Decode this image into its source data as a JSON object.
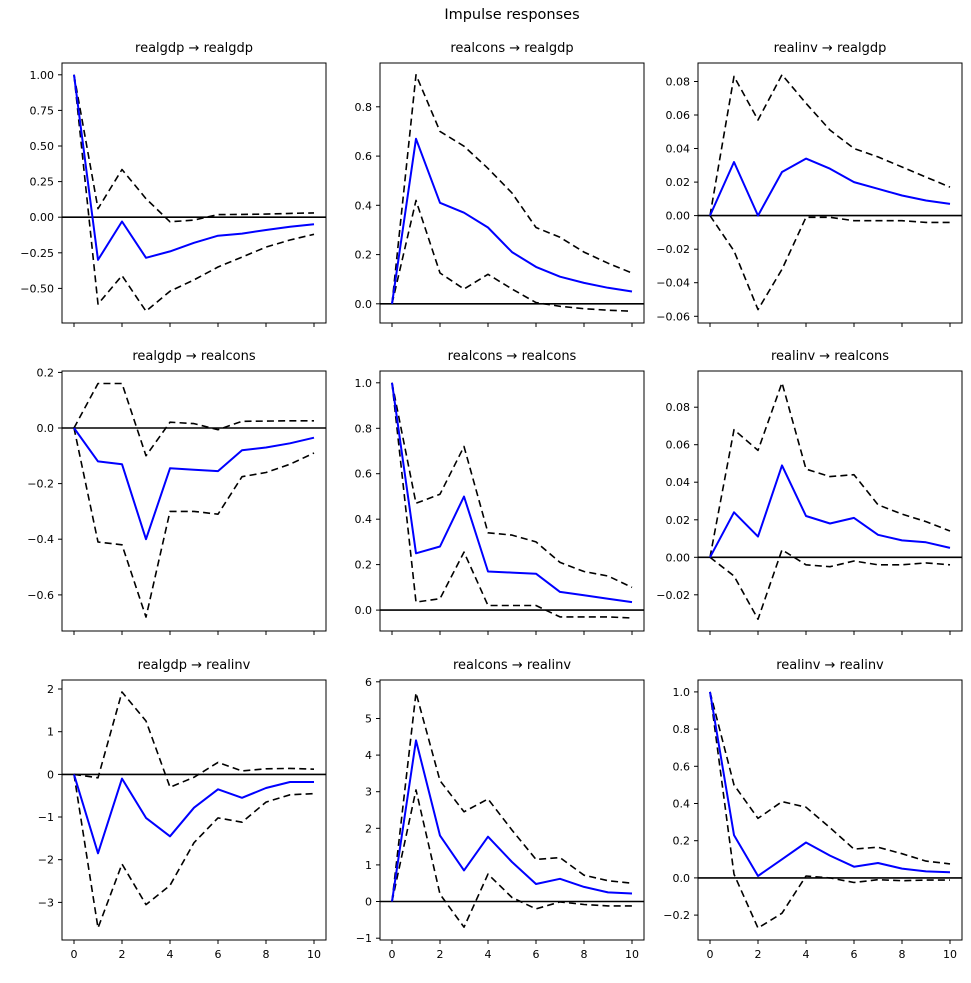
{
  "figure": {
    "title": "Impulse responses",
    "background": "#ffffff"
  },
  "styles": {
    "irf_color": "#0000ff",
    "ci_color": "#000000",
    "zero_line_color": "#000000",
    "axis_color": "#000000"
  },
  "chart_data": [
    {
      "type": "line",
      "title": "realgdp → realgdp",
      "impulse": "realgdp",
      "response": "realgdp",
      "grid": false,
      "legend": "none",
      "x": [
        0,
        1,
        2,
        3,
        4,
        5,
        6,
        7,
        8,
        9,
        10
      ],
      "xlim": [
        -0.5,
        10.5
      ],
      "ylim": [
        -0.743,
        1.083
      ],
      "xticks": [
        0,
        2,
        4,
        6,
        8,
        10
      ],
      "xtick_labels": [
        "0",
        "2",
        "4",
        "6",
        "8",
        "10"
      ],
      "show_xtick_labels": false,
      "ytick_values": [
        1.0,
        0.75,
        0.5,
        0.25,
        0.0,
        -0.25,
        -0.5
      ],
      "ytick_labels": [
        "1.00",
        "0.75",
        "0.50",
        "0.25",
        "0.00",
        "−0.25",
        "−0.50"
      ],
      "series": [
        {
          "name": "irf",
          "values": [
            1.0,
            -0.3,
            -0.03,
            -0.285,
            -0.24,
            -0.18,
            -0.13,
            -0.115,
            -0.09,
            -0.067,
            -0.05
          ]
        },
        {
          "name": "upper_ci",
          "values": [
            1.0,
            0.06,
            0.335,
            0.13,
            -0.032,
            -0.02,
            0.018,
            0.02,
            0.022,
            0.027,
            0.03
          ]
        },
        {
          "name": "lower_ci",
          "values": [
            1.0,
            -0.61,
            -0.41,
            -0.66,
            -0.52,
            -0.44,
            -0.35,
            -0.28,
            -0.21,
            -0.16,
            -0.12
          ]
        }
      ]
    },
    {
      "type": "line",
      "title": "realcons → realgdp",
      "impulse": "realcons",
      "response": "realgdp",
      "grid": false,
      "legend": "none",
      "x": [
        0,
        1,
        2,
        3,
        4,
        5,
        6,
        7,
        8,
        9,
        10
      ],
      "xlim": [
        -0.5,
        10.5
      ],
      "ylim": [
        -0.078,
        0.978
      ],
      "xticks": [
        0,
        2,
        4,
        6,
        8,
        10
      ],
      "xtick_labels": [
        "0",
        "2",
        "4",
        "6",
        "8",
        "10"
      ],
      "show_xtick_labels": false,
      "ytick_values": [
        0.8,
        0.6,
        0.4,
        0.2,
        0.0
      ],
      "ytick_labels": [
        "0.8",
        "0.6",
        "0.4",
        "0.2",
        "0.0"
      ],
      "series": [
        {
          "name": "irf",
          "values": [
            0,
            0.67,
            0.41,
            0.37,
            0.31,
            0.21,
            0.15,
            0.11,
            0.085,
            0.065,
            0.05
          ]
        },
        {
          "name": "upper_ci",
          "values": [
            0,
            0.93,
            0.7,
            0.64,
            0.55,
            0.45,
            0.31,
            0.27,
            0.21,
            0.165,
            0.125
          ]
        },
        {
          "name": "lower_ci",
          "values": [
            0,
            0.42,
            0.125,
            0.06,
            0.12,
            0.06,
            0.005,
            -0.01,
            -0.02,
            -0.026,
            -0.03
          ]
        }
      ]
    },
    {
      "type": "line",
      "title": "realinv → realgdp",
      "impulse": "realinv",
      "response": "realgdp",
      "grid": false,
      "legend": "none",
      "x": [
        0,
        1,
        2,
        3,
        4,
        5,
        6,
        7,
        8,
        9,
        10
      ],
      "xlim": [
        -0.5,
        10.5
      ],
      "ylim": [
        -0.064,
        0.091
      ],
      "xticks": [
        0,
        2,
        4,
        6,
        8,
        10
      ],
      "xtick_labels": [
        "0",
        "2",
        "4",
        "6",
        "8",
        "10"
      ],
      "show_xtick_labels": false,
      "ytick_values": [
        0.08,
        0.06,
        0.04,
        0.02,
        0.0,
        -0.02,
        -0.04,
        -0.06
      ],
      "ytick_labels": [
        "0.08",
        "0.06",
        "0.04",
        "0.02",
        "0.00",
        "−0.02",
        "−0.04",
        "−0.06"
      ],
      "series": [
        {
          "name": "irf",
          "values": [
            0,
            0.032,
            0.0,
            0.026,
            0.034,
            0.028,
            0.02,
            0.016,
            0.012,
            0.009,
            0.007
          ]
        },
        {
          "name": "upper_ci",
          "values": [
            0,
            0.083,
            0.057,
            0.084,
            0.067,
            0.051,
            0.04,
            0.035,
            0.029,
            0.023,
            0.017
          ]
        },
        {
          "name": "lower_ci",
          "values": [
            0,
            -0.021,
            -0.056,
            -0.032,
            -0.001,
            -0.001,
            -0.003,
            -0.003,
            -0.003,
            -0.004,
            -0.004
          ]
        }
      ]
    },
    {
      "type": "line",
      "title": "realgdp → realcons",
      "impulse": "realgdp",
      "response": "realcons",
      "grid": false,
      "legend": "none",
      "x": [
        0,
        1,
        2,
        3,
        4,
        5,
        6,
        7,
        8,
        9,
        10
      ],
      "xlim": [
        -0.5,
        10.5
      ],
      "ylim": [
        -0.73,
        0.205
      ],
      "xticks": [
        0,
        2,
        4,
        6,
        8,
        10
      ],
      "xtick_labels": [
        "0",
        "2",
        "4",
        "6",
        "8",
        "10"
      ],
      "show_xtick_labels": false,
      "ytick_values": [
        0.2,
        0.0,
        -0.2,
        -0.4,
        -0.6
      ],
      "ytick_labels": [
        "0.2",
        "0.0",
        "−0.2",
        "−0.4",
        "−0.6"
      ],
      "series": [
        {
          "name": "irf",
          "values": [
            0,
            -0.12,
            -0.13,
            -0.4,
            -0.145,
            -0.15,
            -0.155,
            -0.08,
            -0.07,
            -0.055,
            -0.035
          ]
        },
        {
          "name": "upper_ci",
          "values": [
            0,
            0.16,
            0.16,
            -0.1,
            0.021,
            0.016,
            -0.006,
            0.024,
            0.025,
            0.026,
            0.026
          ]
        },
        {
          "name": "lower_ci",
          "values": [
            0,
            -0.41,
            -0.42,
            -0.68,
            -0.3,
            -0.3,
            -0.31,
            -0.175,
            -0.16,
            -0.13,
            -0.09
          ]
        }
      ]
    },
    {
      "type": "line",
      "title": "realcons → realcons",
      "impulse": "realcons",
      "response": "realcons",
      "grid": false,
      "legend": "none",
      "x": [
        0,
        1,
        2,
        3,
        4,
        5,
        6,
        7,
        8,
        9,
        10
      ],
      "xlim": [
        -0.5,
        10.5
      ],
      "ylim": [
        -0.092,
        1.052
      ],
      "xticks": [
        0,
        2,
        4,
        6,
        8,
        10
      ],
      "xtick_labels": [
        "0",
        "2",
        "4",
        "6",
        "8",
        "10"
      ],
      "show_xtick_labels": false,
      "ytick_values": [
        1.0,
        0.8,
        0.6,
        0.4,
        0.2,
        0.0
      ],
      "ytick_labels": [
        "1.0",
        "0.8",
        "0.6",
        "0.4",
        "0.2",
        "0.0"
      ],
      "series": [
        {
          "name": "irf",
          "values": [
            1.0,
            0.25,
            0.28,
            0.5,
            0.17,
            0.165,
            0.16,
            0.08,
            0.065,
            0.05,
            0.035
          ]
        },
        {
          "name": "upper_ci",
          "values": [
            1.0,
            0.47,
            0.51,
            0.72,
            0.34,
            0.33,
            0.3,
            0.21,
            0.17,
            0.15,
            0.1
          ]
        },
        {
          "name": "lower_ci",
          "values": [
            1.0,
            0.035,
            0.05,
            0.255,
            0.02,
            0.02,
            0.02,
            -0.03,
            -0.03,
            -0.03,
            -0.035
          ]
        }
      ]
    },
    {
      "type": "line",
      "title": "realinv → realcons",
      "impulse": "realinv",
      "response": "realcons",
      "grid": false,
      "legend": "none",
      "x": [
        0,
        1,
        2,
        3,
        4,
        5,
        6,
        7,
        8,
        9,
        10
      ],
      "xlim": [
        -0.5,
        10.5
      ],
      "ylim": [
        -0.0393,
        0.0993
      ],
      "xticks": [
        0,
        2,
        4,
        6,
        8,
        10
      ],
      "xtick_labels": [
        "0",
        "2",
        "4",
        "6",
        "8",
        "10"
      ],
      "show_xtick_labels": false,
      "ytick_values": [
        0.08,
        0.06,
        0.04,
        0.02,
        0.0,
        -0.02
      ],
      "ytick_labels": [
        "0.08",
        "0.06",
        "0.04",
        "0.02",
        "0.00",
        "−0.02"
      ],
      "series": [
        {
          "name": "irf",
          "values": [
            0,
            0.024,
            0.011,
            0.049,
            0.022,
            0.018,
            0.021,
            0.012,
            0.009,
            0.008,
            0.005
          ]
        },
        {
          "name": "upper_ci",
          "values": [
            0,
            0.068,
            0.057,
            0.093,
            0.047,
            0.043,
            0.044,
            0.028,
            0.023,
            0.019,
            0.014
          ]
        },
        {
          "name": "lower_ci",
          "values": [
            0,
            -0.01,
            -0.033,
            0.004,
            -0.004,
            -0.005,
            -0.002,
            -0.004,
            -0.004,
            -0.003,
            -0.004
          ]
        }
      ]
    },
    {
      "type": "line",
      "title": "realgdp → realinv",
      "impulse": "realgdp",
      "response": "realinv",
      "grid": false,
      "legend": "none",
      "x": [
        0,
        1,
        2,
        3,
        4,
        5,
        6,
        7,
        8,
        9,
        10
      ],
      "xlim": [
        -0.5,
        10.5
      ],
      "ylim": [
        -3.88,
        2.21
      ],
      "xticks": [
        0,
        2,
        4,
        6,
        8,
        10
      ],
      "xtick_labels": [
        "0",
        "2",
        "4",
        "6",
        "8",
        "10"
      ],
      "show_xtick_labels": true,
      "ytick_values": [
        2,
        1,
        0,
        -1,
        -2,
        -3
      ],
      "ytick_labels": [
        "2",
        "1",
        "0",
        "−1",
        "−2",
        "−3"
      ],
      "series": [
        {
          "name": "irf",
          "values": [
            0,
            -1.85,
            -0.1,
            -1.02,
            -1.45,
            -0.78,
            -0.35,
            -0.55,
            -0.32,
            -0.18,
            -0.18
          ]
        },
        {
          "name": "upper_ci",
          "values": [
            0,
            -0.08,
            1.93,
            1.25,
            -0.3,
            -0.07,
            0.28,
            0.08,
            0.13,
            0.14,
            0.12
          ]
        },
        {
          "name": "lower_ci",
          "values": [
            0,
            -3.6,
            -2.1,
            -3.05,
            -2.6,
            -1.6,
            -1.02,
            -1.12,
            -0.65,
            -0.48,
            -0.45
          ]
        }
      ]
    },
    {
      "type": "line",
      "title": "realcons → realinv",
      "impulse": "realcons",
      "response": "realinv",
      "grid": false,
      "legend": "none",
      "x": [
        0,
        1,
        2,
        3,
        4,
        5,
        6,
        7,
        8,
        9,
        10
      ],
      "xlim": [
        -0.5,
        10.5
      ],
      "ylim": [
        -1.05,
        6.05
      ],
      "xticks": [
        0,
        2,
        4,
        6,
        8,
        10
      ],
      "xtick_labels": [
        "0",
        "2",
        "4",
        "6",
        "8",
        "10"
      ],
      "show_xtick_labels": true,
      "ytick_values": [
        6,
        5,
        4,
        3,
        2,
        1,
        0,
        -1
      ],
      "ytick_labels": [
        "6",
        "5",
        "4",
        "3",
        "2",
        "1",
        "0",
        "−1"
      ],
      "series": [
        {
          "name": "irf",
          "values": [
            0,
            4.4,
            1.8,
            0.85,
            1.77,
            1.08,
            0.48,
            0.62,
            0.4,
            0.25,
            0.22
          ]
        },
        {
          "name": "upper_ci",
          "values": [
            0,
            5.7,
            3.3,
            2.45,
            2.8,
            1.95,
            1.15,
            1.2,
            0.72,
            0.57,
            0.5
          ]
        },
        {
          "name": "lower_ci",
          "values": [
            0,
            3.05,
            0.2,
            -0.7,
            0.75,
            0.11,
            -0.2,
            -0.01,
            -0.08,
            -0.12,
            -0.12
          ]
        }
      ]
    },
    {
      "type": "line",
      "title": "realinv → realinv",
      "impulse": "realinv",
      "response": "realinv",
      "grid": false,
      "legend": "none",
      "x": [
        0,
        1,
        2,
        3,
        4,
        5,
        6,
        7,
        8,
        9,
        10
      ],
      "xlim": [
        -0.5,
        10.5
      ],
      "ylim": [
        -0.334,
        1.064
      ],
      "xticks": [
        0,
        2,
        4,
        6,
        8,
        10
      ],
      "xtick_labels": [
        "0",
        "2",
        "4",
        "6",
        "8",
        "10"
      ],
      "show_xtick_labels": true,
      "ytick_values": [
        1.0,
        0.8,
        0.6,
        0.4,
        0.2,
        0.0,
        -0.2
      ],
      "ytick_labels": [
        "1.0",
        "0.8",
        "0.6",
        "0.4",
        "0.2",
        "0.0",
        "−0.2"
      ],
      "series": [
        {
          "name": "irf",
          "values": [
            1.0,
            0.23,
            0.01,
            0.1,
            0.19,
            0.12,
            0.06,
            0.08,
            0.05,
            0.035,
            0.03
          ]
        },
        {
          "name": "upper_ci",
          "values": [
            1.0,
            0.5,
            0.32,
            0.41,
            0.38,
            0.27,
            0.155,
            0.165,
            0.13,
            0.09,
            0.075
          ]
        },
        {
          "name": "lower_ci",
          "values": [
            1.0,
            0.02,
            -0.27,
            -0.19,
            0.01,
            0.0,
            -0.025,
            -0.01,
            -0.015,
            -0.012,
            -0.012
          ]
        }
      ]
    }
  ]
}
